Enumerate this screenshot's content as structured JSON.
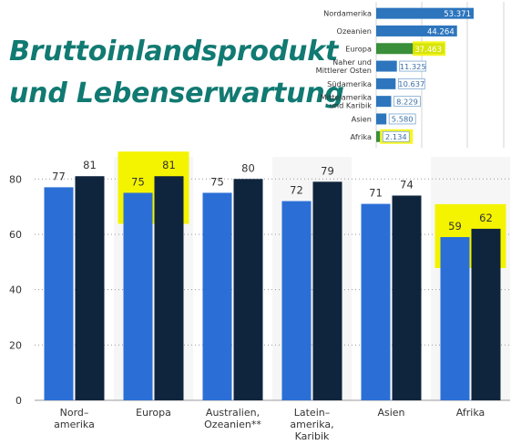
{
  "heading": {
    "line1": "Bruttoinlandsprodukt",
    "line2": "und Lebenserwartung"
  },
  "chart_data": [
    {
      "id": "gdp",
      "type": "bar",
      "orientation": "horizontal",
      "categories": [
        "Nordamerika",
        "Ozeanien",
        "Europa",
        "Naher und Mittlerer Osten",
        "Südamerika",
        "Mittelamerika und Karibik",
        "Asien",
        "Afrika"
      ],
      "category_lines": [
        [
          "Nordamerika"
        ],
        [
          "Ozeanien"
        ],
        [
          "Europa"
        ],
        [
          "Naher und",
          "Mittlerer Osten"
        ],
        [
          "Südamerika"
        ],
        [
          "Mittelamerika",
          "und Karibik"
        ],
        [
          "Asien"
        ],
        [
          "Afrika"
        ]
      ],
      "values": [
        53371,
        44264,
        37463,
        11325,
        10637,
        8229,
        5580,
        2134
      ],
      "value_labels": [
        "53.371",
        "44.264",
        "37.463",
        "11.325",
        "10.637",
        "8.229",
        "5.580",
        "2.134"
      ],
      "highlighted": [
        "Europa",
        "Afrika"
      ],
      "bar_color": "#2d75bd",
      "highlight_bar_color": "#3a8f3a",
      "highlight_marker_color": "#f4f400",
      "grid": true
    },
    {
      "id": "life",
      "type": "bar",
      "orientation": "vertical",
      "categories": [
        "Nord-amerika",
        "Europa",
        "Australien, Ozeanien**",
        "Latein-amerika, Karibik",
        "Asien",
        "Afrika"
      ],
      "category_lines": [
        [
          "Nord–",
          "amerika"
        ],
        [
          "Europa"
        ],
        [
          "Australien,",
          "Ozeanien**"
        ],
        [
          "Latein–",
          "amerika,",
          "Karibik"
        ],
        [
          "Asien"
        ],
        [
          "Afrika"
        ]
      ],
      "series": [
        {
          "values": [
            77,
            75,
            75,
            72,
            71,
            59
          ],
          "color": "#2b6fd6"
        },
        {
          "values": [
            81,
            81,
            80,
            79,
            74,
            62
          ],
          "color": "#0f253d"
        }
      ],
      "yticks": [
        0,
        20,
        40,
        60,
        80
      ],
      "ylim": [
        0,
        88
      ],
      "highlighted": [
        "Europa",
        "Afrika"
      ],
      "highlight_marker_color": "#f4f400",
      "grid": true
    }
  ]
}
